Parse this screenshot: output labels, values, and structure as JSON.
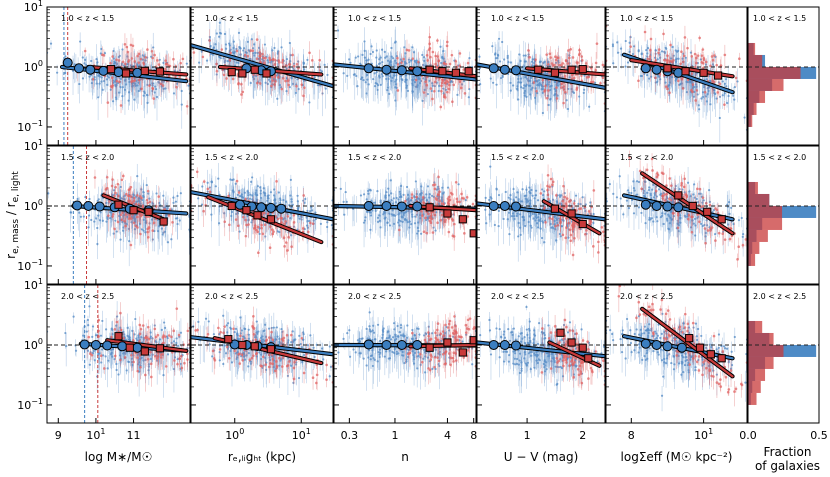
{
  "figure": {
    "ylabel": "rₑ,ₘₐₛₛ / rₑ,ₗᵢgₕₜ",
    "ylabel_parts": {
      "main": "r",
      "sub1": "e, mass",
      "sep": " / r",
      "sub2": "e, light"
    },
    "redshift_bins": [
      "1.0 < z < 1.5",
      "1.5 < z < 2.0",
      "2.0 < z < 2.5"
    ],
    "colors": {
      "blue": "#3b7ec0",
      "red": "#c83a3a",
      "blue_scatter": "#5a8fc7",
      "red_scatter": "#e06464"
    }
  },
  "chart_data": [
    {
      "type": "scatter",
      "panel_column": "log M*/M☉",
      "xlabel": "log M∗/M☉",
      "xlim": [
        8.7,
        12.5
      ],
      "xticks": [
        "9",
        "10",
        "11"
      ],
      "ylim": [
        0.05,
        10
      ],
      "yscale": "log",
      "yticks": [
        "10⁻¹",
        "10⁰",
        "10¹"
      ],
      "rows": [
        {
          "z": "1.0 < z < 1.5",
          "blue_fit": [
            [
              9.1,
              1.0
            ],
            [
              12.4,
              0.58
            ]
          ],
          "red_fit": [
            [
              9.8,
              1.0
            ],
            [
              12.4,
              0.75
            ]
          ],
          "blue_bins": [
            [
              9.25,
              1.18
            ],
            [
              9.55,
              0.95
            ],
            [
              9.85,
              0.9
            ],
            [
              10.2,
              0.86
            ],
            [
              10.6,
              0.82
            ],
            [
              11.1,
              0.8
            ]
          ],
          "red_bins": [
            [
              10.4,
              0.92
            ],
            [
              10.8,
              0.78
            ],
            [
              11.3,
              0.86
            ],
            [
              11.7,
              0.84
            ]
          ],
          "mass_limits": {
            "blue": 9.15,
            "red": 9.25
          }
        },
        {
          "z": "1.5 < z < 2.0",
          "blue_fit": [
            [
              9.4,
              1.0
            ],
            [
              12.4,
              0.75
            ]
          ],
          "red_fit": [
            [
              10.2,
              1.5
            ],
            [
              11.8,
              0.6
            ]
          ],
          "blue_bins": [
            [
              9.5,
              1.02
            ],
            [
              9.8,
              1.0
            ],
            [
              10.1,
              0.98
            ],
            [
              10.5,
              0.95
            ],
            [
              10.9,
              0.9
            ],
            [
              11.4,
              0.85
            ]
          ],
          "red_bins": [
            [
              10.6,
              1.05
            ],
            [
              11.0,
              0.85
            ],
            [
              11.4,
              0.8
            ],
            [
              11.8,
              0.55
            ]
          ],
          "mass_limits": {
            "blue": 9.4,
            "red": 9.75
          }
        },
        {
          "z": "2.0 < z < 2.5",
          "blue_fit": [
            [
              9.6,
              1.05
            ],
            [
              12.4,
              0.8
            ]
          ],
          "red_fit": [
            [
              10.3,
              1.2
            ],
            [
              12.4,
              0.8
            ]
          ],
          "blue_bins": [
            [
              9.7,
              1.02
            ],
            [
              10.0,
              1.0
            ],
            [
              10.3,
              0.98
            ],
            [
              10.7,
              0.95
            ],
            [
              11.1,
              0.9
            ]
          ],
          "red_bins": [
            [
              10.6,
              1.4
            ],
            [
              10.9,
              0.9
            ],
            [
              11.3,
              0.78
            ],
            [
              11.7,
              0.88
            ]
          ],
          "mass_limits": {
            "blue": 9.7,
            "red": 10.05
          }
        }
      ]
    },
    {
      "type": "scatter",
      "panel_column": "re,light",
      "xlabel": "rₑ,ₗᵢgₕₜ (kpc)",
      "xscale": "log",
      "xlim": [
        0.22,
        30
      ],
      "xticks": [
        "10⁰",
        "10¹"
      ],
      "ylim": [
        0.05,
        10
      ],
      "rows": [
        {
          "z": "1.0 < z < 1.5",
          "blue_fit": [
            [
              0.22,
              2.3
            ],
            [
              30,
              0.48
            ]
          ],
          "red_fit": [
            [
              0.6,
              1.0
            ],
            [
              20,
              0.75
            ]
          ],
          "blue_bins": [
            [
              1.5,
              0.95
            ],
            [
              2.5,
              0.88
            ],
            [
              3.5,
              0.85
            ]
          ],
          "red_bins": [
            [
              0.9,
              0.82
            ],
            [
              1.3,
              0.78
            ],
            [
              2.0,
              0.9
            ],
            [
              3.0,
              0.78
            ]
          ]
        },
        {
          "z": "1.5 < z < 2.0",
          "blue_fit": [
            [
              0.22,
              1.7
            ],
            [
              30,
              0.6
            ]
          ],
          "red_fit": [
            [
              0.4,
              1.4
            ],
            [
              20,
              0.25
            ]
          ],
          "blue_bins": [
            [
              1.2,
              1.05
            ],
            [
              1.8,
              0.98
            ],
            [
              2.5,
              0.95
            ],
            [
              3.5,
              0.93
            ],
            [
              5,
              0.9
            ]
          ],
          "red_bins": [
            [
              0.9,
              1.0
            ],
            [
              1.5,
              0.85
            ],
            [
              2.2,
              0.7
            ],
            [
              3.5,
              0.6
            ]
          ]
        },
        {
          "z": "2.0 < z < 2.5",
          "blue_fit": [
            [
              0.22,
              1.35
            ],
            [
              30,
              0.7
            ]
          ],
          "red_fit": [
            [
              0.5,
              1.3
            ],
            [
              20,
              0.5
            ]
          ],
          "blue_bins": [
            [
              1.0,
              1.02
            ],
            [
              1.5,
              1.0
            ],
            [
              2.2,
              0.96
            ],
            [
              3.5,
              0.92
            ]
          ],
          "red_bins": [
            [
              0.8,
              1.25
            ],
            [
              1.3,
              1.0
            ],
            [
              2.0,
              0.95
            ],
            [
              3.5,
              0.85
            ]
          ]
        }
      ]
    },
    {
      "type": "scatter",
      "panel_column": "n",
      "xlabel": "n",
      "xscale": "log",
      "xlim": [
        0.2,
        8.5
      ],
      "xticks": [
        "0.3",
        "1",
        "4",
        "8"
      ],
      "ylim": [
        0.05,
        10
      ],
      "rows": [
        {
          "z": "1.0 < z < 1.5",
          "blue_fit": [
            [
              0.2,
              1.1
            ],
            [
              8.5,
              0.62
            ]
          ],
          "red_fit": [
            [
              1.5,
              0.95
            ],
            [
              8.5,
              0.7
            ]
          ],
          "blue_bins": [
            [
              0.5,
              0.95
            ],
            [
              0.8,
              0.9
            ],
            [
              1.2,
              0.88
            ],
            [
              1.8,
              0.85
            ]
          ],
          "red_bins": [
            [
              2.5,
              0.9
            ],
            [
              3.5,
              0.85
            ],
            [
              5,
              0.8
            ],
            [
              7,
              0.85
            ]
          ]
        },
        {
          "z": "1.5 < z < 2.0",
          "blue_fit": [
            [
              0.2,
              1.0
            ],
            [
              8.5,
              0.9
            ]
          ],
          "red_fit": [
            [
              1.5,
              1.0
            ],
            [
              8.5,
              0.85
            ]
          ],
          "blue_bins": [
            [
              0.5,
              1.0
            ],
            [
              0.8,
              1.0
            ],
            [
              1.2,
              0.98
            ],
            [
              1.8,
              0.98
            ]
          ],
          "red_bins": [
            [
              2.5,
              0.95
            ],
            [
              4,
              0.75
            ],
            [
              6,
              0.6
            ],
            [
              8,
              0.35
            ]
          ]
        },
        {
          "z": "2.0 < z < 2.5",
          "blue_fit": [
            [
              0.2,
              1.0
            ],
            [
              8.5,
              0.98
            ]
          ],
          "red_fit": [
            [
              1.5,
              0.95
            ],
            [
              8.5,
              1.0
            ]
          ],
          "blue_bins": [
            [
              0.5,
              1.02
            ],
            [
              0.8,
              1.0
            ],
            [
              1.2,
              1.0
            ],
            [
              1.8,
              1.0
            ]
          ],
          "red_bins": [
            [
              2.5,
              0.9
            ],
            [
              4,
              1.1
            ],
            [
              6,
              0.75
            ],
            [
              8,
              1.2
            ]
          ]
        }
      ]
    },
    {
      "type": "scatter",
      "panel_column": "U-V",
      "xlabel": "U − V (mag)",
      "xlim": [
        0.1,
        2.4
      ],
      "xticks": [
        "1",
        "2"
      ],
      "ylim": [
        0.05,
        10
      ],
      "rows": [
        {
          "z": "1.0 < z < 1.5",
          "blue_fit": [
            [
              0.1,
              1.1
            ],
            [
              2.4,
              0.45
            ]
          ],
          "red_fit": [
            [
              1.0,
              0.95
            ],
            [
              2.4,
              0.75
            ]
          ],
          "blue_bins": [
            [
              0.4,
              0.95
            ],
            [
              0.6,
              0.9
            ],
            [
              0.8,
              0.88
            ]
          ],
          "red_bins": [
            [
              1.2,
              0.9
            ],
            [
              1.5,
              0.8
            ],
            [
              1.8,
              0.9
            ],
            [
              2.0,
              0.92
            ]
          ]
        },
        {
          "z": "1.5 < z < 2.0",
          "blue_fit": [
            [
              0.1,
              1.1
            ],
            [
              2.4,
              0.6
            ]
          ],
          "red_fit": [
            [
              1.3,
              1.2
            ],
            [
              2.3,
              0.35
            ]
          ],
          "blue_bins": [
            [
              0.4,
              1.0
            ],
            [
              0.6,
              1.0
            ],
            [
              0.8,
              0.98
            ]
          ],
          "red_bins": [
            [
              1.5,
              0.9
            ],
            [
              1.8,
              0.75
            ],
            [
              2.0,
              0.5
            ]
          ]
        },
        {
          "z": "2.0 < z < 2.5",
          "blue_fit": [
            [
              0.1,
              1.1
            ],
            [
              2.4,
              0.65
            ]
          ],
          "red_fit": [
            [
              1.4,
              1.1
            ],
            [
              2.3,
              0.45
            ]
          ],
          "blue_bins": [
            [
              0.4,
              1.0
            ],
            [
              0.6,
              1.0
            ],
            [
              0.8,
              0.98
            ]
          ],
          "red_bins": [
            [
              1.6,
              1.6
            ],
            [
              1.8,
              1.1
            ],
            [
              2.0,
              0.9
            ],
            [
              2.1,
              0.6
            ]
          ]
        }
      ]
    },
    {
      "type": "scatter",
      "panel_column": "log Sigma_eff",
      "xlabel": "logΣeff (M☉ kpc⁻²)",
      "xlim": [
        7.3,
        11.2
      ],
      "xticks": [
        "8",
        "10"
      ],
      "ylim": [
        0.05,
        10
      ],
      "rows": [
        {
          "z": "1.0 < z < 1.5",
          "blue_fit": [
            [
              7.8,
              1.6
            ],
            [
              10.8,
              0.38
            ]
          ],
          "red_fit": [
            [
              8.0,
              1.3
            ],
            [
              10.8,
              0.7
            ]
          ],
          "blue_bins": [
            [
              8.4,
              0.95
            ],
            [
              8.7,
              0.9
            ],
            [
              9.0,
              0.85
            ],
            [
              9.3,
              0.8
            ]
          ],
          "red_bins": [
            [
              9.0,
              0.95
            ],
            [
              9.5,
              0.85
            ],
            [
              10.0,
              0.8
            ],
            [
              10.4,
              0.72
            ]
          ]
        },
        {
          "z": "1.5 < z < 2.0",
          "blue_fit": [
            [
              7.8,
              1.5
            ],
            [
              10.8,
              0.6
            ]
          ],
          "red_fit": [
            [
              8.3,
              3.5
            ],
            [
              10.8,
              0.35
            ]
          ],
          "blue_bins": [
            [
              8.4,
              1.05
            ],
            [
              8.7,
              1.0
            ],
            [
              9.0,
              0.98
            ],
            [
              9.3,
              0.95
            ]
          ],
          "red_bins": [
            [
              9.3,
              1.5
            ],
            [
              9.7,
              1.0
            ],
            [
              10.1,
              0.8
            ],
            [
              10.5,
              0.6
            ]
          ]
        },
        {
          "z": "2.0 < z < 2.5",
          "blue_fit": [
            [
              7.8,
              1.4
            ],
            [
              10.8,
              0.6
            ]
          ],
          "red_fit": [
            [
              8.3,
              4.0
            ],
            [
              10.8,
              0.3
            ]
          ],
          "blue_bins": [
            [
              8.4,
              1.05
            ],
            [
              8.7,
              1.0
            ],
            [
              9.0,
              0.95
            ],
            [
              9.4,
              0.9
            ]
          ],
          "red_bins": [
            [
              9.6,
              1.3
            ],
            [
              9.9,
              0.9
            ],
            [
              10.2,
              0.7
            ],
            [
              10.5,
              0.6
            ]
          ]
        }
      ]
    },
    {
      "type": "bar",
      "panel_column": "histogram",
      "xlabel": "Fraction of galaxies",
      "xlabel_lines": [
        "Fraction",
        "of galaxies"
      ],
      "xlim": [
        0.0,
        0.5
      ],
      "xticks": [
        "0.0",
        "0.5"
      ],
      "orientation": "horizontal",
      "rows": [
        {
          "z": "1.0 < z < 1.5",
          "log_ratio_bin_centers": [
            -0.9,
            -0.7,
            -0.5,
            -0.3,
            -0.1,
            0.1,
            0.3
          ],
          "blue_fraction": [
            0.02,
            0.04,
            0.08,
            0.17,
            0.48,
            0.12,
            0.04
          ],
          "red_fraction": [
            0.03,
            0.06,
            0.12,
            0.25,
            0.37,
            0.1,
            0.05
          ]
        },
        {
          "z": "1.5 < z < 2.0",
          "log_ratio_bin_centers": [
            -0.9,
            -0.7,
            -0.5,
            -0.3,
            -0.1,
            0.1,
            0.3
          ],
          "blue_fraction": [
            0.02,
            0.03,
            0.06,
            0.1,
            0.48,
            0.15,
            0.05
          ],
          "red_fraction": [
            0.05,
            0.08,
            0.14,
            0.24,
            0.24,
            0.15,
            0.07
          ]
        },
        {
          "z": "2.0 < z < 2.5",
          "log_ratio_bin_centers": [
            -0.9,
            -0.7,
            -0.5,
            -0.3,
            -0.1,
            0.1,
            0.3
          ],
          "blue_fraction": [
            0.02,
            0.03,
            0.05,
            0.12,
            0.48,
            0.15,
            0.05
          ],
          "red_fraction": [
            0.06,
            0.09,
            0.12,
            0.18,
            0.25,
            0.18,
            0.1
          ]
        }
      ]
    }
  ]
}
